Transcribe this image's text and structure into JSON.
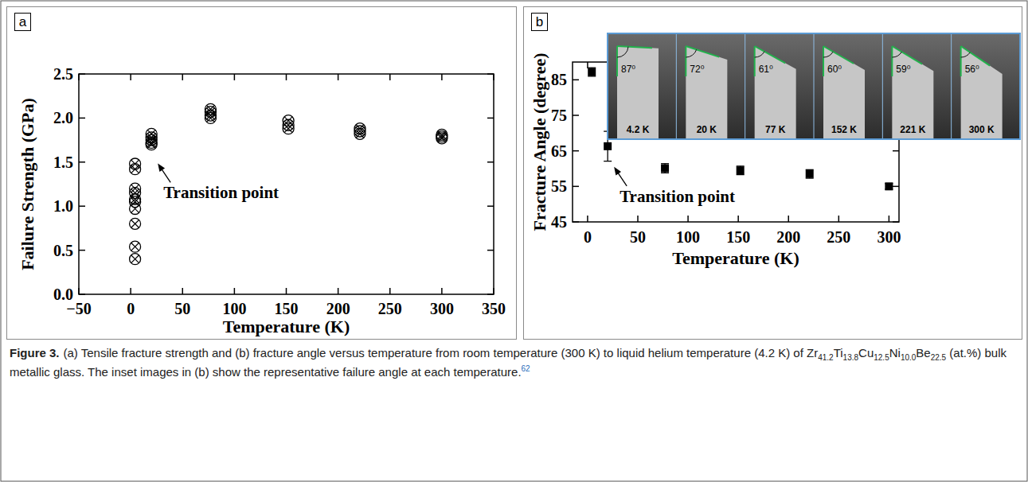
{
  "chart_data": [
    {
      "type": "scatter",
      "label": "a",
      "x_label": "Temperature (K)",
      "y_label": "Failure Strength (GPa)",
      "xlim": [
        -50,
        350
      ],
      "xticks": [
        {
          "value": -50,
          "label": "−50"
        },
        0,
        50,
        100,
        150,
        200,
        250,
        300,
        350
      ],
      "ylim": [
        0,
        2.5
      ],
      "yticks": [
        {
          "value": 0,
          "label": "0.0"
        },
        0.5,
        {
          "value": 1,
          "label": "1.0"
        },
        1.5,
        {
          "value": 2,
          "label": "2.0"
        },
        2.5
      ],
      "series": [
        {
          "color": "#000000",
          "marker": "circle-x",
          "x": [
            4.2,
            4.2,
            4.2,
            4.2,
            4.2,
            4.2,
            4.2,
            4.2,
            4.2,
            4.2,
            20,
            20,
            20,
            20,
            20,
            77,
            77,
            77,
            77,
            152,
            152,
            152,
            221,
            221,
            221,
            300,
            300,
            300
          ],
          "values": [
            1.48,
            1.42,
            1.2,
            1.15,
            1.08,
            1.05,
            0.97,
            0.8,
            0.54,
            0.4,
            1.82,
            1.78,
            1.75,
            1.72,
            1.7,
            2.1,
            2.07,
            2.03,
            2.0,
            1.97,
            1.92,
            1.88,
            1.88,
            1.85,
            1.82,
            1.81,
            1.79,
            1.77
          ]
        }
      ],
      "annotations": [
        {
          "text": "Transition point",
          "x": 20,
          "y": 1.72
        }
      ]
    },
    {
      "type": "scatter",
      "label": "b",
      "x_label": "Temperature (K)",
      "y_label": "Fracture Angle (degree)",
      "xlim": [
        -15,
        310
      ],
      "xticks": [
        0,
        50,
        100,
        150,
        200,
        250,
        300
      ],
      "ylim": [
        45,
        90
      ],
      "yticks": [
        45,
        55,
        65,
        75,
        85
      ],
      "series": [
        {
          "color": "#000000",
          "marker": "square",
          "x": [
            4.2,
            20,
            77,
            152,
            221,
            300
          ],
          "values": [
            87.2,
            66.3,
            60.1,
            59.5,
            58.5,
            55.0
          ],
          "errors": [
            1.2,
            4.2,
            1.3,
            1.2,
            1.2,
            0.8
          ]
        }
      ],
      "annotations": [
        {
          "text": "Transition point",
          "x": 20,
          "y": 66.3
        }
      ],
      "inset": [
        {
          "angle": 87,
          "angle_label": "87⁰",
          "label": "4.2 K"
        },
        {
          "angle": 72,
          "angle_label": "72⁰",
          "label": "20 K"
        },
        {
          "angle": 61,
          "angle_label": "61⁰",
          "label": "77 K"
        },
        {
          "angle": 60,
          "angle_label": "60⁰",
          "label": "152 K"
        },
        {
          "angle": 59,
          "angle_label": "59⁰",
          "label": "221 K"
        },
        {
          "angle": 56,
          "angle_label": "56⁰",
          "label": "300 K"
        }
      ]
    }
  ],
  "caption": {
    "label": "Figure 3.",
    "parts": [
      {
        "text": "(a) Tensile fracture strength and (b) fracture angle versus temperature from room temperature (300 K) to liquid helium temperature (4.2 K) of Zr"
      },
      {
        "sub": "41.2"
      },
      {
        "text": "Ti"
      },
      {
        "sub": "13.8"
      },
      {
        "text": "Cu"
      },
      {
        "sub": "12.5"
      },
      {
        "text": "Ni"
      },
      {
        "sub": "10.0"
      },
      {
        "text": "Be"
      },
      {
        "sub": "22.5"
      },
      {
        "text": " (at.%) bulk metallic glass. The inset images in (b) show the representative failure angle at each temperature."
      },
      {
        "sup": "62"
      }
    ]
  }
}
